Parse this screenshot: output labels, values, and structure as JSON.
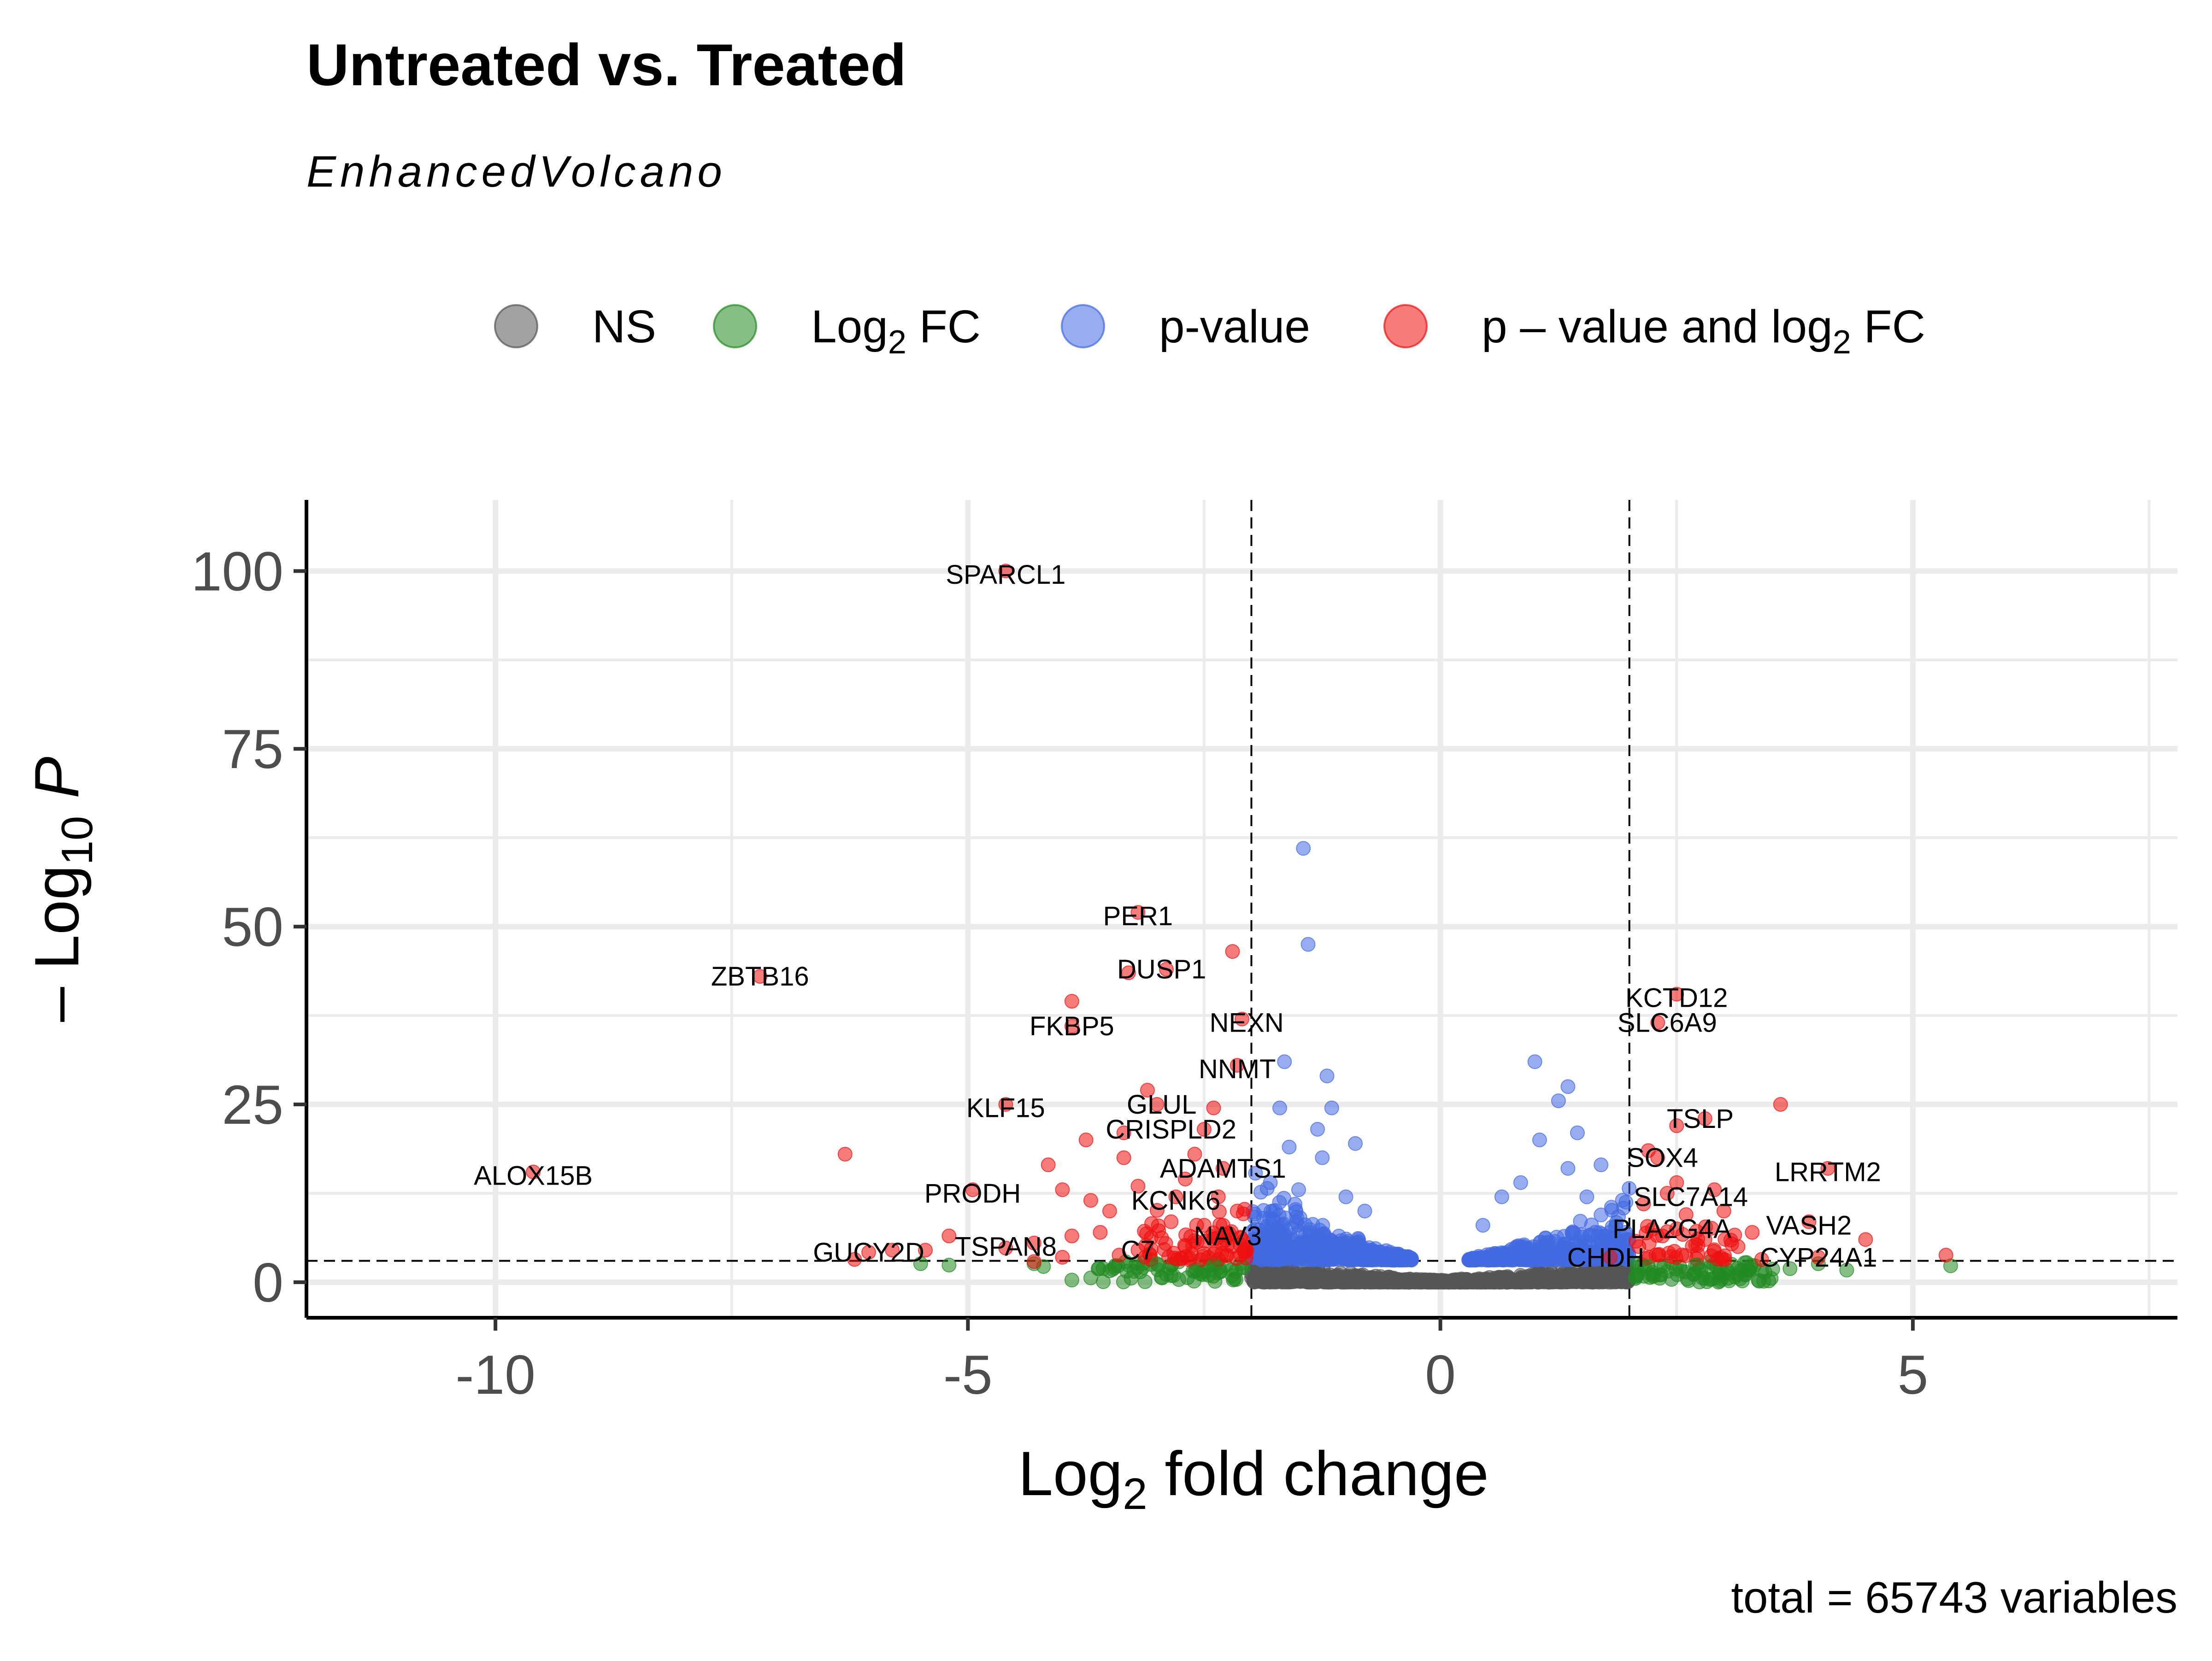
{
  "chart_data": {
    "type": "scatter",
    "title": "Untreated vs. Treated",
    "subtitle": "EnhancedVolcano",
    "caption": "total = 65743 variables",
    "xlabel": {
      "base": "Log",
      "sub": "2",
      "rest": " fold change"
    },
    "ylabel": {
      "prefix": "– Log",
      "sub": "10",
      "italic": "P"
    },
    "xlim": [
      -12,
      7.8
    ],
    "ylim": [
      -5,
      110
    ],
    "x_ticks": [
      -10,
      -5,
      0,
      5
    ],
    "x_tick_labels": [
      "-10",
      "-5",
      "0",
      "5"
    ],
    "y_ticks": [
      0,
      25,
      50,
      75,
      100
    ],
    "y_tick_labels": [
      "0",
      "25",
      "50",
      "75",
      "100"
    ],
    "fc_cutoff": 2,
    "p_cutoff_neglog10": 3,
    "grid": true,
    "legend_position": "top",
    "legend": [
      {
        "key": "NS",
        "parts": [
          {
            "t": "NS"
          }
        ],
        "color": "#555555"
      },
      {
        "key": "FC",
        "parts": [
          {
            "t": "Log"
          },
          {
            "t": "2",
            "sub": true
          },
          {
            "t": " FC"
          }
        ],
        "color": "#228B22"
      },
      {
        "key": "P",
        "parts": [
          {
            "t": "p-value"
          }
        ],
        "color": "#4169E1"
      },
      {
        "key": "PFC",
        "parts": [
          {
            "t": "p – value and log"
          },
          {
            "t": "2",
            "sub": true
          },
          {
            "t": " FC"
          }
        ],
        "color": "#EE1111"
      }
    ],
    "labeled_points": [
      {
        "gene": "SPARCL1",
        "x": -4.6,
        "y": 100,
        "lx": -4.6,
        "ly": 99.5
      },
      {
        "gene": "PER1",
        "x": -3.2,
        "y": 52,
        "lx": -3.2,
        "ly": 51.5
      },
      {
        "gene": "DUSP1",
        "x": -2.9,
        "y": 44,
        "lx": -2.95,
        "ly": 44
      },
      {
        "gene": "ZBTB16",
        "x": -7.2,
        "y": 43,
        "lx": -7.2,
        "ly": 43
      },
      {
        "gene": "FKBP5",
        "x": -3.9,
        "y": 36,
        "lx": -3.9,
        "ly": 36
      },
      {
        "gene": "NEXN",
        "x": -2.1,
        "y": 37,
        "lx": -2.05,
        "ly": 36.5
      },
      {
        "gene": "NNMT",
        "x": -2.15,
        "y": 30.5,
        "lx": -2.15,
        "ly": 30
      },
      {
        "gene": "KLF15",
        "x": -4.6,
        "y": 25,
        "lx": -4.6,
        "ly": 24.5
      },
      {
        "gene": "GLUL",
        "x": -3.0,
        "y": 25,
        "lx": -2.95,
        "ly": 25
      },
      {
        "gene": "CRISPLD2",
        "x": -2.5,
        "y": 21.5,
        "lx": -2.85,
        "ly": 21.5
      },
      {
        "gene": "ADAMTS1",
        "x": -2.3,
        "y": 16,
        "lx": -2.3,
        "ly": 16
      },
      {
        "gene": "KCNK6",
        "x": -2.8,
        "y": 12,
        "lx": -2.8,
        "ly": 11.5
      },
      {
        "gene": "PRODH",
        "x": -4.95,
        "y": 13,
        "lx": -4.95,
        "ly": 12.5
      },
      {
        "gene": "NAV3",
        "x": -2.25,
        "y": 6.5,
        "lx": -2.25,
        "ly": 6.5
      },
      {
        "gene": "C7",
        "x": -3.2,
        "y": 4.5,
        "lx": -3.2,
        "ly": 4.5
      },
      {
        "gene": "TSPAN8",
        "x": -4.6,
        "y": 4.8,
        "lx": -4.6,
        "ly": 5
      },
      {
        "gene": "GUCY2D",
        "x": -6.05,
        "y": 4.2,
        "lx": -6.05,
        "ly": 4.2
      },
      {
        "gene": "ALOX15B",
        "x": -9.6,
        "y": 15.5,
        "lx": -9.6,
        "ly": 15
      },
      {
        "gene": "KCTD12",
        "x": 2.5,
        "y": 40.5,
        "lx": 2.5,
        "ly": 40
      },
      {
        "gene": "SLC6A9",
        "x": 2.3,
        "y": 36.5,
        "lx": 2.4,
        "ly": 36.5
      },
      {
        "gene": "TSLP",
        "x": 2.8,
        "y": 23,
        "lx": 2.75,
        "ly": 23
      },
      {
        "gene": "SOX4",
        "x": 2.3,
        "y": 17.5,
        "lx": 2.35,
        "ly": 17.5
      },
      {
        "gene": "LRRTM2",
        "x": 4.1,
        "y": 16,
        "lx": 4.1,
        "ly": 15.5
      },
      {
        "gene": "SLC7A14",
        "x": 2.4,
        "y": 12.5,
        "lx": 2.65,
        "ly": 12
      },
      {
        "gene": "PLA2G4A",
        "x": 2.5,
        "y": 7.5,
        "lx": 2.45,
        "ly": 7.5
      },
      {
        "gene": "VASH2",
        "x": 3.9,
        "y": 8.5,
        "lx": 3.9,
        "ly": 8
      },
      {
        "gene": "CHDH",
        "x": 1.8,
        "y": 3.5,
        "lx": 1.75,
        "ly": 3.5
      },
      {
        "gene": "CYP24A1",
        "x": 4.0,
        "y": 3.5,
        "lx": 4.0,
        "ly": 3.5
      }
    ],
    "unlabeled_points": {
      "PFC": [
        [
          -6.3,
          18
        ],
        [
          -3.9,
          39.5
        ],
        [
          -2.2,
          46.5
        ],
        [
          -3.3,
          43.5
        ],
        [
          3.6,
          25
        ],
        [
          2.5,
          22
        ],
        [
          -3.75,
          20
        ],
        [
          -3.35,
          21
        ],
        [
          -3.1,
          27
        ],
        [
          -2.4,
          24.5
        ],
        [
          -4.15,
          16.5
        ],
        [
          -3.35,
          17.5
        ],
        [
          -4.0,
          13
        ],
        [
          -3.7,
          11.5
        ],
        [
          -3.2,
          13.5
        ],
        [
          -2.6,
          18
        ],
        [
          -2.7,
          14.5
        ],
        [
          -2.35,
          12
        ],
        [
          -2.15,
          10
        ],
        [
          -2.5,
          8
        ],
        [
          -2.85,
          8.5
        ],
        [
          -3.5,
          10
        ],
        [
          -3.6,
          7
        ],
        [
          -3.9,
          6.5
        ],
        [
          -4.3,
          5.5
        ],
        [
          -5.2,
          6.5
        ],
        [
          -5.45,
          4.5
        ],
        [
          -5.8,
          4.5
        ],
        [
          -6.2,
          3.2
        ],
        [
          -4.0,
          3.5
        ],
        [
          -2.2,
          5
        ],
        [
          -2.4,
          4
        ],
        [
          2.2,
          18.5
        ],
        [
          2.5,
          14
        ],
        [
          2.9,
          13
        ],
        [
          3.0,
          10
        ],
        [
          3.3,
          7
        ],
        [
          2.6,
          9.5
        ],
        [
          2.8,
          6
        ],
        [
          3.15,
          5
        ],
        [
          4.5,
          6
        ],
        [
          5.35,
          3.8
        ],
        [
          2.1,
          5
        ],
        [
          3.4,
          3.2
        ],
        [
          -2.3,
          8
        ],
        [
          -2.05,
          4.5
        ],
        [
          -4.3,
          2.9
        ],
        [
          -3.4,
          3.8
        ],
        [
          2.15,
          11
        ],
        [
          2.35,
          6.5
        ]
      ],
      "P": [
        [
          -1.45,
          61
        ],
        [
          -1.4,
          47.5
        ],
        [
          1.0,
          31
        ],
        [
          1.35,
          27.5
        ],
        [
          -1.65,
          31
        ],
        [
          -1.2,
          29
        ],
        [
          -1.7,
          24.5
        ],
        [
          -1.15,
          24.5
        ],
        [
          -1.3,
          21.5
        ],
        [
          -1.25,
          17.5
        ],
        [
          -1.6,
          19
        ],
        [
          -0.9,
          19.5
        ],
        [
          1.25,
          25.5
        ],
        [
          1.45,
          21
        ],
        [
          1.05,
          20
        ],
        [
          1.7,
          16.5
        ],
        [
          1.35,
          16
        ],
        [
          0.85,
          14
        ],
        [
          0.65,
          12
        ],
        [
          -1.8,
          14
        ],
        [
          -1.5,
          13
        ],
        [
          -1.0,
          12
        ],
        [
          -0.8,
          10
        ],
        [
          0.45,
          8
        ],
        [
          1.55,
          12
        ]
      ],
      "FC": [
        [
          -3.9,
          0.3
        ],
        [
          -2.6,
          1.5
        ],
        [
          -3.0,
          2.6
        ],
        [
          -4.2,
          2.2
        ],
        [
          -5.2,
          2.4
        ],
        [
          -5.5,
          2.6
        ],
        [
          -3.5,
          1.6
        ],
        [
          -2.4,
          2.4
        ],
        [
          2.4,
          1.5
        ],
        [
          3.0,
          1.2
        ],
        [
          3.4,
          1.6
        ],
        [
          4.0,
          2.6
        ],
        [
          4.3,
          1.7
        ],
        [
          5.4,
          2.3
        ],
        [
          2.2,
          2.2
        ],
        [
          3.7,
          1.9
        ],
        [
          -2.9,
          1.1
        ],
        [
          -4.3,
          2.6
        ],
        [
          2.7,
          2.4
        ],
        [
          -3.7,
          0.6
        ]
      ]
    }
  }
}
